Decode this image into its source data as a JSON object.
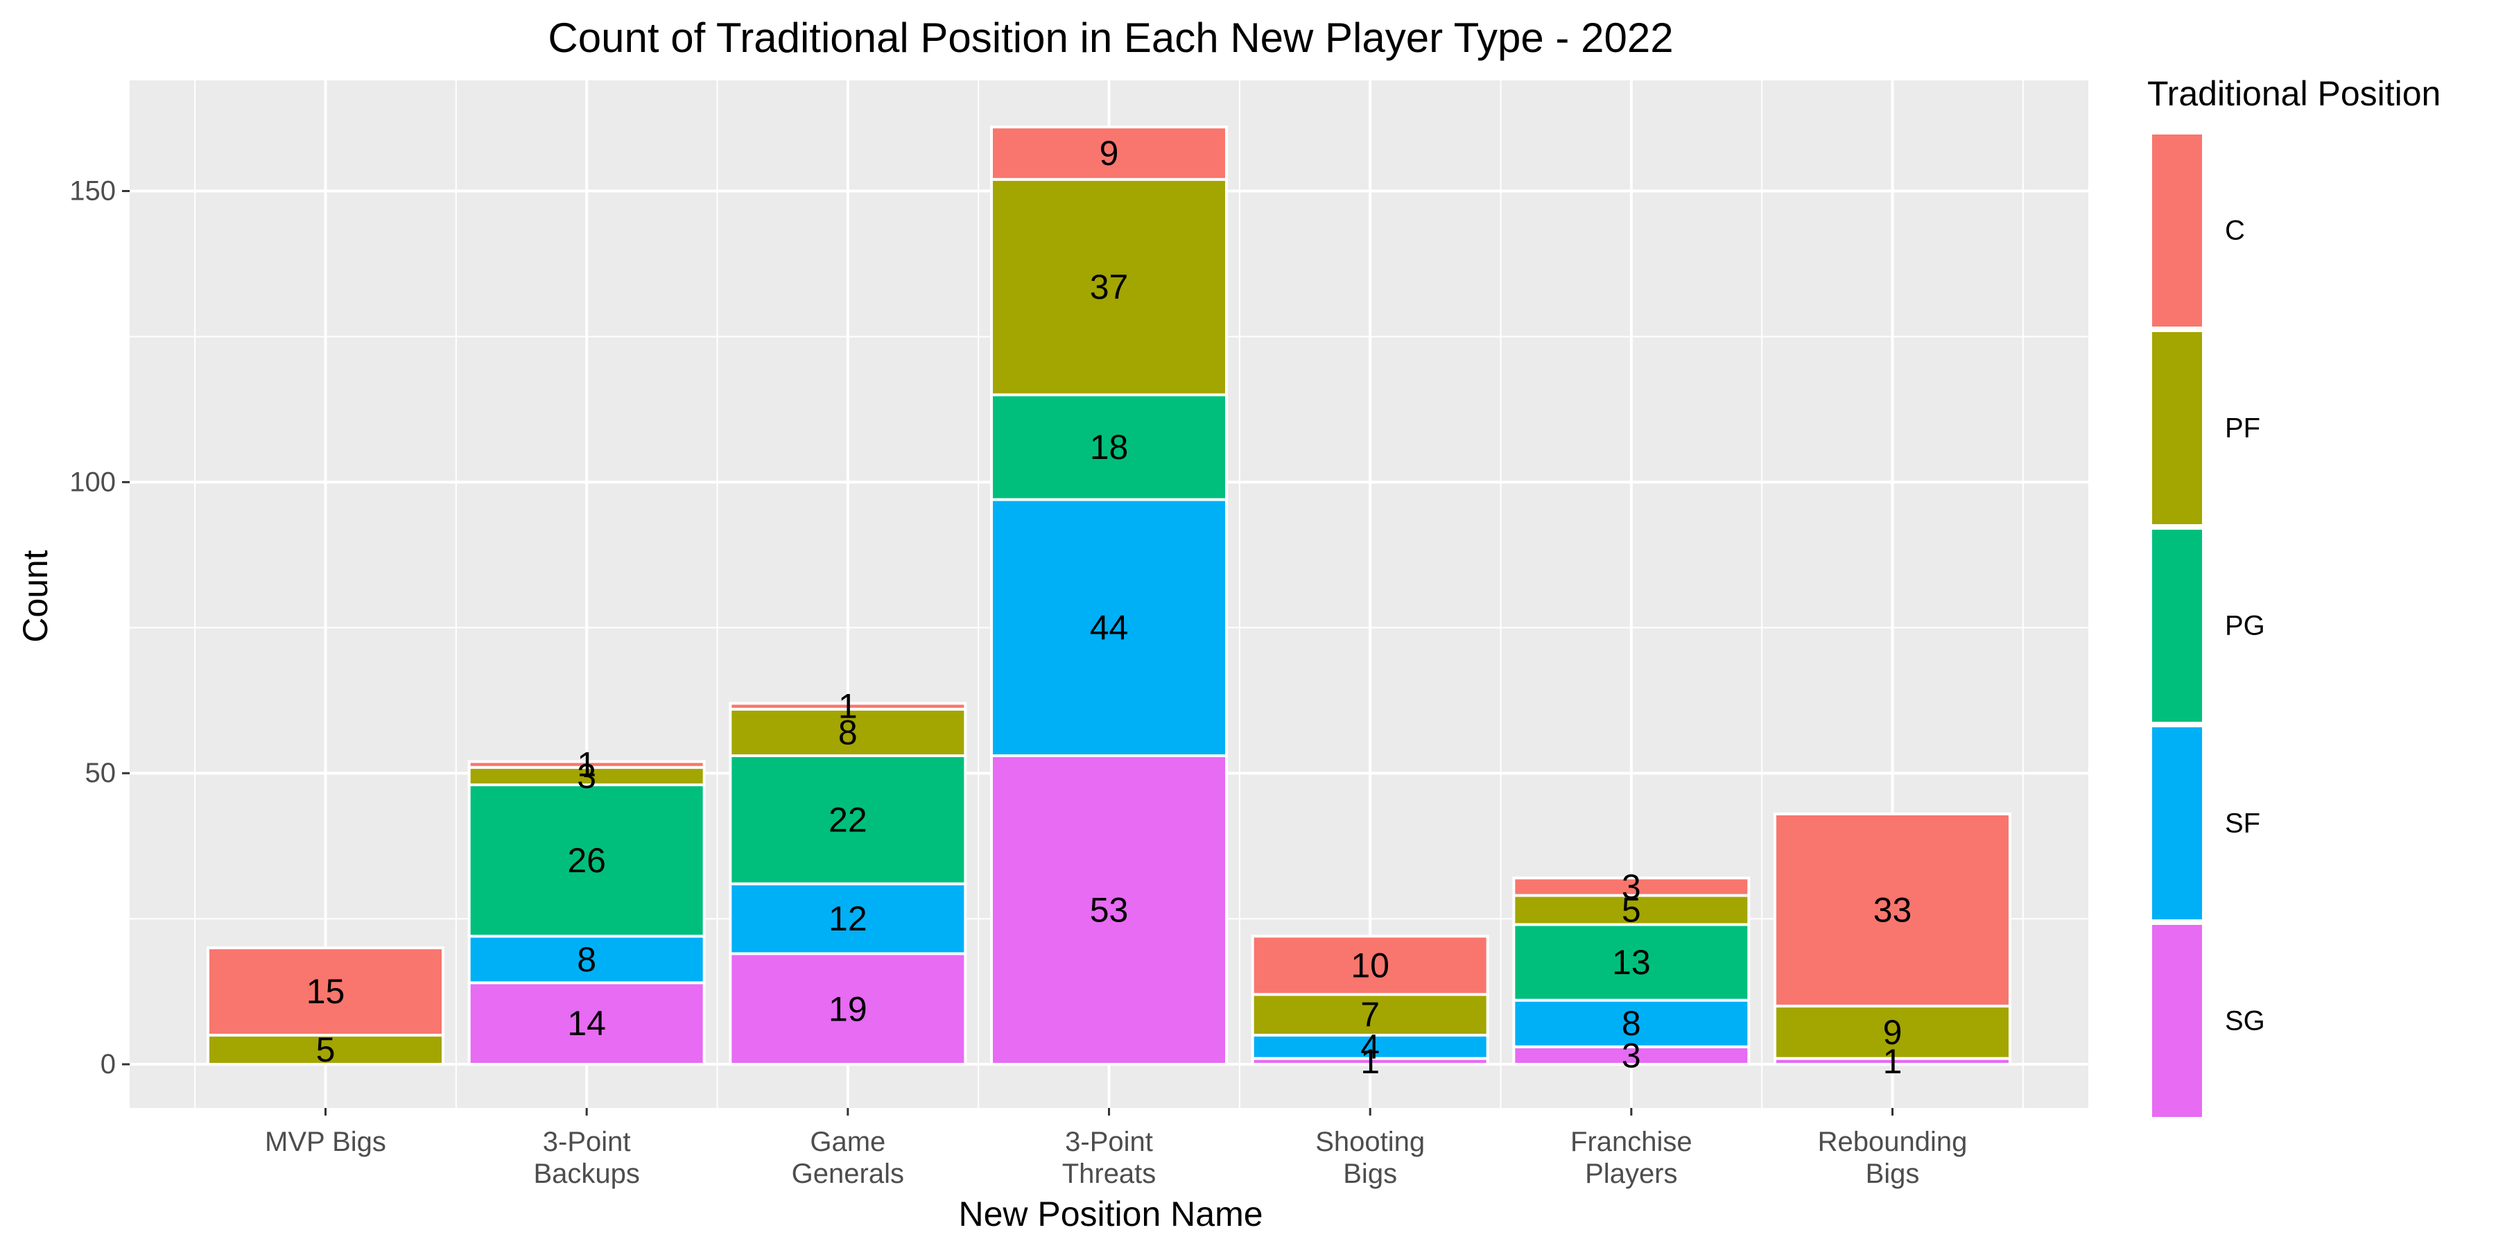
{
  "chart_data": {
    "type": "bar",
    "stacked": true,
    "title": "Count of Traditional Position in Each New Player Type - 2022",
    "xlabel": "New Position Name",
    "ylabel": "Count",
    "ylim": [
      -7.5,
      169
    ],
    "yticks": [
      0,
      50,
      100,
      150
    ],
    "categories": [
      [
        "MVP Bigs"
      ],
      [
        "3-Point",
        "Backups"
      ],
      [
        "Game",
        "Generals"
      ],
      [
        "3-Point",
        "Threats"
      ],
      [
        "Shooting",
        "Bigs"
      ],
      [
        "Franchise",
        "Players"
      ],
      [
        "Rebounding",
        "Bigs"
      ]
    ],
    "stack_order": [
      "SG",
      "SF",
      "PG",
      "PF",
      "C"
    ],
    "series": [
      {
        "name": "C",
        "color": "#F8766D",
        "values": [
          15,
          1,
          1,
          9,
          10,
          3,
          33
        ]
      },
      {
        "name": "PF",
        "color": "#A3A500",
        "values": [
          5,
          3,
          8,
          37,
          7,
          5,
          9
        ]
      },
      {
        "name": "PG",
        "color": "#00BF7D",
        "values": [
          0,
          26,
          22,
          18,
          0,
          13,
          0
        ]
      },
      {
        "name": "SF",
        "color": "#00B0F6",
        "values": [
          0,
          8,
          12,
          44,
          4,
          8,
          0
        ]
      },
      {
        "name": "SG",
        "color": "#E76BF3",
        "values": [
          0,
          14,
          19,
          53,
          1,
          3,
          1
        ]
      }
    ],
    "legend": {
      "title": "Traditional Position",
      "position": "right",
      "entries": [
        "C",
        "PF",
        "PG",
        "SF",
        "SG"
      ]
    },
    "grid": true,
    "panel_background": "#EBEBEB",
    "bar_outline": "#FFFFFF"
  }
}
